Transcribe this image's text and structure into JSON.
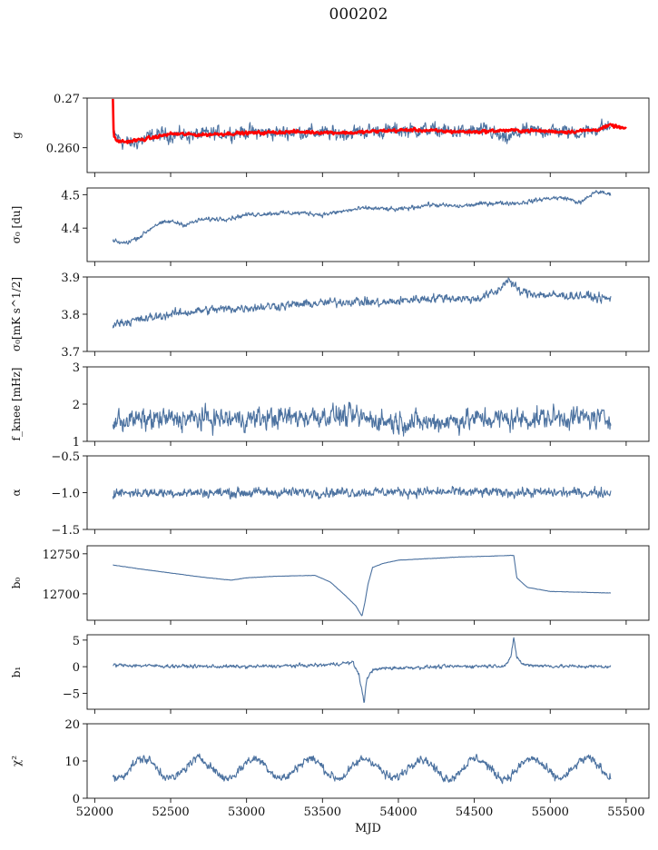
{
  "title": "000202",
  "xlabel": "MJD",
  "colors": {
    "series": "#4c72a0",
    "model": "#ff0000",
    "axis": "#111111"
  },
  "chart_data": {
    "type": "line",
    "xlim": [
      51950,
      55650
    ],
    "xticks": [
      52000,
      52500,
      53000,
      53500,
      54000,
      54500,
      55000,
      55500
    ],
    "xtick_labels": [
      "52000",
      "52500",
      "53000",
      "53500",
      "54000",
      "54500",
      "55000",
      "55500"
    ],
    "xlabel": "MJD",
    "panels": [
      {
        "key": "g",
        "ylabel": "g",
        "ylim": [
          0.255,
          0.27
        ],
        "yticks": [
          0.26,
          0.27
        ],
        "ytick_labels": [
          "0.260",
          "0.27"
        ],
        "series": [
          {
            "style": "series",
            "base": 0.2628,
            "noise": 0.0011,
            "x": [
              52120,
              52180,
              52250,
              52400,
              52600,
              52800,
              53000,
              53200,
              53400,
              53600,
              53800,
              54000,
              54200,
              54400,
              54600,
              54700,
              54800,
              55000,
              55200,
              55350,
              55400
            ],
            "y": [
              0.263,
              0.2612,
              0.2608,
              0.2626,
              0.2625,
              0.2628,
              0.2632,
              0.263,
              0.2632,
              0.2628,
              0.2633,
              0.2635,
              0.2636,
              0.2632,
              0.2634,
              0.2615,
              0.2632,
              0.2635,
              0.263,
              0.2642,
              0.264
            ]
          },
          {
            "style": "model",
            "base": 0.263,
            "noise": 0.00025,
            "x": [
              52120,
              52125,
              52140,
              52200,
              52350,
              52500,
              52700,
              52900,
              53100,
              53300,
              53500,
              53700,
              53900,
              54100,
              54300,
              54500,
              54700,
              54900,
              55100,
              55300,
              55400,
              55500
            ],
            "y": [
              0.27,
              0.2625,
              0.2614,
              0.2612,
              0.2618,
              0.2628,
              0.2626,
              0.2629,
              0.263,
              0.2632,
              0.2631,
              0.263,
              0.2634,
              0.2636,
              0.2633,
              0.2632,
              0.2635,
              0.2634,
              0.2632,
              0.2636,
              0.2645,
              0.2638
            ]
          }
        ]
      },
      {
        "key": "sigma0_du",
        "ylabel": "σ₀ [du]",
        "ylim": [
          4.3,
          4.52
        ],
        "yticks": [
          4.4,
          4.5
        ],
        "ytick_labels": [
          "4.4",
          "4.5"
        ],
        "series": [
          {
            "style": "series",
            "base": 4.45,
            "noise": 0.005,
            "x": [
              52120,
              52200,
              52300,
              52400,
              52500,
              52600,
              52700,
              52900,
              53000,
              53200,
              53400,
              53500,
              53700,
              53800,
              54000,
              54200,
              54400,
              54600,
              54800,
              55000,
              55100,
              55200,
              55300,
              55400
            ],
            "y": [
              4.36,
              4.355,
              4.375,
              4.41,
              4.42,
              4.41,
              4.425,
              4.43,
              4.44,
              4.445,
              4.445,
              4.44,
              4.455,
              4.46,
              4.455,
              4.47,
              4.465,
              4.475,
              4.475,
              4.49,
              4.49,
              4.475,
              4.51,
              4.5
            ]
          }
        ]
      },
      {
        "key": "sigma0_mk",
        "ylabel": "σ₀[mK s^1/2]",
        "ylim": [
          3.7,
          3.9
        ],
        "yticks": [
          3.7,
          3.8,
          3.9
        ],
        "ytick_labels": [
          "3.7",
          "3.8",
          "3.9"
        ],
        "series": [
          {
            "style": "series",
            "base": 3.82,
            "noise": 0.009,
            "x": [
              52120,
              52200,
              52300,
              52500,
              52700,
              52900,
              53100,
              53300,
              53500,
              53700,
              53900,
              54100,
              54300,
              54500,
              54650,
              54720,
              54800,
              55000,
              55200,
              55400
            ],
            "y": [
              3.775,
              3.78,
              3.785,
              3.8,
              3.81,
              3.815,
              3.82,
              3.825,
              3.83,
              3.835,
              3.83,
              3.84,
              3.845,
              3.84,
              3.86,
              3.895,
              3.86,
              3.85,
              3.85,
              3.84
            ]
          }
        ]
      },
      {
        "key": "fknee",
        "ylabel": "f_knee [mHz]",
        "ylim": [
          1,
          3
        ],
        "yticks": [
          1,
          2,
          3
        ],
        "ytick_labels": [
          "1",
          "2",
          "3"
        ],
        "series": [
          {
            "style": "series",
            "base": 1.6,
            "noise": 0.22,
            "x": [
              52120,
              52500,
              53000,
              53300,
              53600,
              53900,
              54200,
              54500,
              54800,
              55100,
              55400
            ],
            "y": [
              1.55,
              1.6,
              1.6,
              1.65,
              1.7,
              1.55,
              1.5,
              1.6,
              1.6,
              1.65,
              1.6
            ]
          }
        ]
      },
      {
        "key": "alpha",
        "ylabel": "α",
        "ylim": [
          -1.5,
          -0.5
        ],
        "yticks": [
          -1.5,
          -1.0,
          -0.5
        ],
        "ytick_labels": [
          "−1.5",
          "−1.0",
          "−0.5"
        ],
        "series": [
          {
            "style": "series",
            "base": -1.0,
            "noise": 0.05,
            "x": [
              52120,
              53000,
              54000,
              55000,
              55400
            ],
            "y": [
              -1.0,
              -1.0,
              -0.99,
              -1.0,
              -1.0
            ]
          }
        ]
      },
      {
        "key": "b0",
        "ylabel": "b₀",
        "ylim": [
          12667,
          12760
        ],
        "yticks": [
          12700,
          12750
        ],
        "ytick_labels": [
          "12700",
          "12750"
        ],
        "series": [
          {
            "style": "series",
            "base": 12720,
            "noise": 0.15,
            "x": [
              52120,
              52300,
              52500,
              52700,
              52900,
              53000,
              53200,
              53450,
              53550,
              53650,
              53720,
              53760,
              53780,
              53800,
              53830,
              53900,
              54000,
              54200,
              54400,
              54600,
              54740,
              54760,
              54780,
              54850,
              55000,
              55200,
              55400
            ],
            "y": [
              12736,
              12731,
              12726,
              12721,
              12717,
              12720,
              12722,
              12723,
              12715,
              12698,
              12685,
              12672,
              12690,
              12712,
              12733,
              12738,
              12742,
              12744,
              12746,
              12747,
              12748,
              12748,
              12720,
              12708,
              12703,
              12702,
              12701
            ]
          }
        ]
      },
      {
        "key": "b1",
        "ylabel": "b₁",
        "ylim": [
          -8,
          6
        ],
        "yticks": [
          -5,
          0,
          5
        ],
        "ytick_labels": [
          "−5",
          "0",
          "5"
        ],
        "series": [
          {
            "style": "series",
            "base": 0,
            "noise": 0.25,
            "x": [
              52120,
              52500,
              53000,
              53500,
              53700,
              53740,
              53760,
              53775,
              53790,
              53820,
              53900,
              54300,
              54700,
              54740,
              54760,
              54780,
              54820,
              55000,
              55400
            ],
            "y": [
              0.3,
              0.1,
              0.0,
              0.3,
              0.8,
              -1.5,
              -4.5,
              -7.0,
              -2.5,
              -0.8,
              -0.3,
              0.0,
              0.2,
              1.5,
              5.5,
              1.8,
              0.4,
              0.1,
              0.0
            ]
          }
        ]
      },
      {
        "key": "chi2",
        "ylabel": "χ²",
        "ylim": [
          0,
          20
        ],
        "yticks": [
          0,
          10,
          20
        ],
        "ytick_labels": [
          "0",
          "10",
          "20"
        ],
        "series": [
          {
            "style": "series",
            "base": 8.0,
            "noise": 0.9,
            "periodic": {
              "amp": 2.6,
              "period": 365.25,
              "phase": 52230
            },
            "x": [
              52120,
              55400
            ],
            "y": [
              8.0,
              8.0
            ]
          }
        ]
      }
    ]
  }
}
